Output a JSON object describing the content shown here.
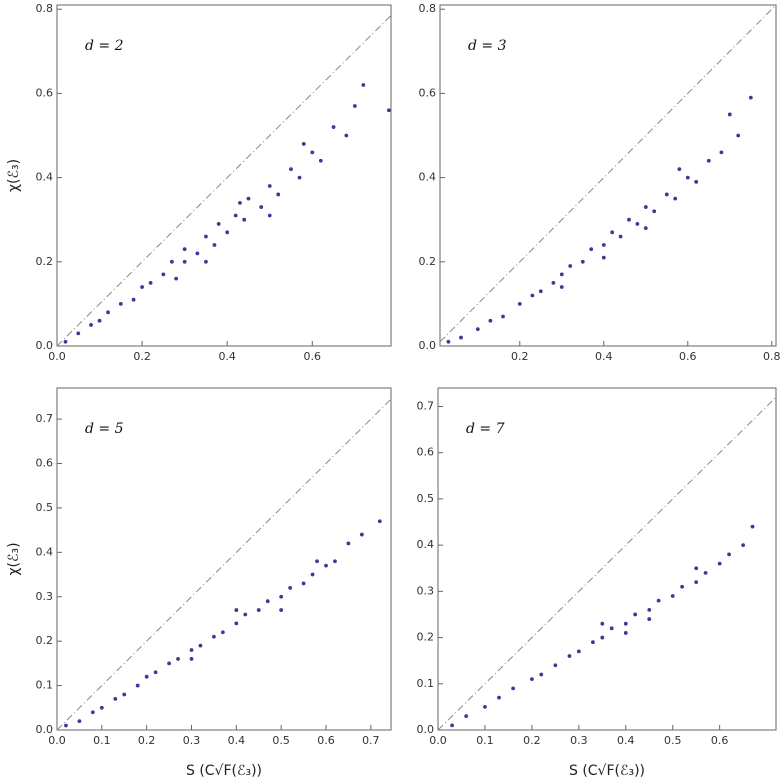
{
  "chart_data": [
    {
      "type": "scatter",
      "annotation": "d = 2",
      "ylabel": "χ(ℰ₃)",
      "color": "#3d3a96",
      "xlim": [
        0,
        0.785
      ],
      "ylim": [
        0,
        0.81
      ],
      "xticks": [
        {
          "value": 0,
          "label": "0.0"
        },
        0.2,
        0.4,
        0.6
      ],
      "yticks": [
        {
          "value": 0,
          "label": "0.0"
        },
        0.2,
        0.4,
        0.6,
        0.8
      ],
      "x": [
        0.02,
        0.05,
        0.08,
        0.1,
        0.12,
        0.15,
        0.18,
        0.2,
        0.22,
        0.25,
        0.27,
        0.3,
        0.3,
        0.33,
        0.35,
        0.37,
        0.38,
        0.4,
        0.42,
        0.44,
        0.45,
        0.48,
        0.5,
        0.52,
        0.55,
        0.57,
        0.6,
        0.62,
        0.65,
        0.68,
        0.72,
        0.78,
        0.35,
        0.28,
        0.43,
        0.5,
        0.58,
        0.7
      ],
      "values": [
        0.01,
        0.03,
        0.05,
        0.06,
        0.08,
        0.1,
        0.11,
        0.14,
        0.15,
        0.17,
        0.2,
        0.2,
        0.23,
        0.22,
        0.26,
        0.24,
        0.29,
        0.27,
        0.31,
        0.3,
        0.35,
        0.33,
        0.38,
        0.36,
        0.42,
        0.4,
        0.46,
        0.44,
        0.52,
        0.5,
        0.62,
        0.56,
        0.2,
        0.16,
        0.34,
        0.31,
        0.48,
        0.57
      ]
    },
    {
      "type": "scatter",
      "annotation": "d = 3",
      "color": "#3d3a96",
      "xlim": [
        0.01,
        0.81
      ],
      "ylim": [
        0,
        0.81
      ],
      "xticks": [
        0.2,
        0.4,
        0.6,
        0.8
      ],
      "yticks": [
        {
          "value": 0,
          "label": "0.0"
        },
        0.2,
        0.4,
        0.6,
        0.8
      ],
      "x": [
        0.03,
        0.06,
        0.1,
        0.13,
        0.16,
        0.2,
        0.23,
        0.25,
        0.28,
        0.3,
        0.32,
        0.35,
        0.37,
        0.4,
        0.42,
        0.44,
        0.46,
        0.48,
        0.5,
        0.52,
        0.55,
        0.57,
        0.6,
        0.62,
        0.65,
        0.68,
        0.72,
        0.75,
        0.3,
        0.4,
        0.5,
        0.58,
        0.7
      ],
      "values": [
        0.01,
        0.02,
        0.04,
        0.06,
        0.07,
        0.1,
        0.12,
        0.13,
        0.15,
        0.17,
        0.19,
        0.2,
        0.23,
        0.24,
        0.27,
        0.26,
        0.3,
        0.29,
        0.33,
        0.32,
        0.36,
        0.35,
        0.4,
        0.39,
        0.44,
        0.46,
        0.5,
        0.59,
        0.14,
        0.21,
        0.28,
        0.42,
        0.55
      ]
    },
    {
      "type": "scatter",
      "annotation": "d = 5",
      "ylabel": "χ(ℰ₃)",
      "xlabel": "S (C√F(ℰ₃))",
      "color": "#3d3a96",
      "xlim": [
        0,
        0.745
      ],
      "ylim": [
        0,
        0.77
      ],
      "xticks": [
        {
          "value": 0,
          "label": "0.0"
        },
        0.1,
        0.2,
        0.3,
        0.4,
        0.5,
        0.6,
        0.7
      ],
      "yticks": [
        {
          "value": 0,
          "label": "0.0"
        },
        0.1,
        0.2,
        0.3,
        0.4,
        0.5,
        0.6,
        0.7
      ],
      "x": [
        0.02,
        0.05,
        0.08,
        0.1,
        0.13,
        0.15,
        0.18,
        0.2,
        0.22,
        0.25,
        0.27,
        0.3,
        0.32,
        0.35,
        0.37,
        0.4,
        0.42,
        0.45,
        0.47,
        0.5,
        0.52,
        0.55,
        0.57,
        0.6,
        0.62,
        0.65,
        0.68,
        0.72,
        0.3,
        0.4,
        0.5,
        0.58
      ],
      "values": [
        0.01,
        0.02,
        0.04,
        0.05,
        0.07,
        0.08,
        0.1,
        0.12,
        0.13,
        0.15,
        0.16,
        0.18,
        0.19,
        0.21,
        0.22,
        0.24,
        0.26,
        0.27,
        0.29,
        0.3,
        0.32,
        0.33,
        0.35,
        0.37,
        0.38,
        0.42,
        0.44,
        0.47,
        0.16,
        0.27,
        0.27,
        0.38
      ]
    },
    {
      "type": "scatter",
      "annotation": "d = 7",
      "xlabel": "S (C√F(ℰ₃))",
      "color": "#3d3a96",
      "xlim": [
        0,
        0.72
      ],
      "ylim": [
        0,
        0.74
      ],
      "xticks": [
        {
          "value": 0,
          "label": "0.0"
        },
        0.1,
        0.2,
        0.3,
        0.4,
        0.5,
        0.6
      ],
      "yticks": [
        {
          "value": 0,
          "label": "0.0"
        },
        0.1,
        0.2,
        0.3,
        0.4,
        0.5,
        0.6,
        0.7
      ],
      "x": [
        0.03,
        0.06,
        0.1,
        0.13,
        0.16,
        0.2,
        0.22,
        0.25,
        0.28,
        0.3,
        0.33,
        0.35,
        0.37,
        0.4,
        0.42,
        0.45,
        0.47,
        0.5,
        0.52,
        0.55,
        0.57,
        0.6,
        0.62,
        0.65,
        0.67,
        0.35,
        0.45,
        0.55,
        0.4
      ],
      "values": [
        0.01,
        0.03,
        0.05,
        0.07,
        0.09,
        0.11,
        0.12,
        0.14,
        0.16,
        0.17,
        0.19,
        0.2,
        0.22,
        0.23,
        0.25,
        0.26,
        0.28,
        0.29,
        0.31,
        0.32,
        0.34,
        0.36,
        0.38,
        0.4,
        0.44,
        0.23,
        0.24,
        0.35,
        0.21
      ]
    }
  ]
}
